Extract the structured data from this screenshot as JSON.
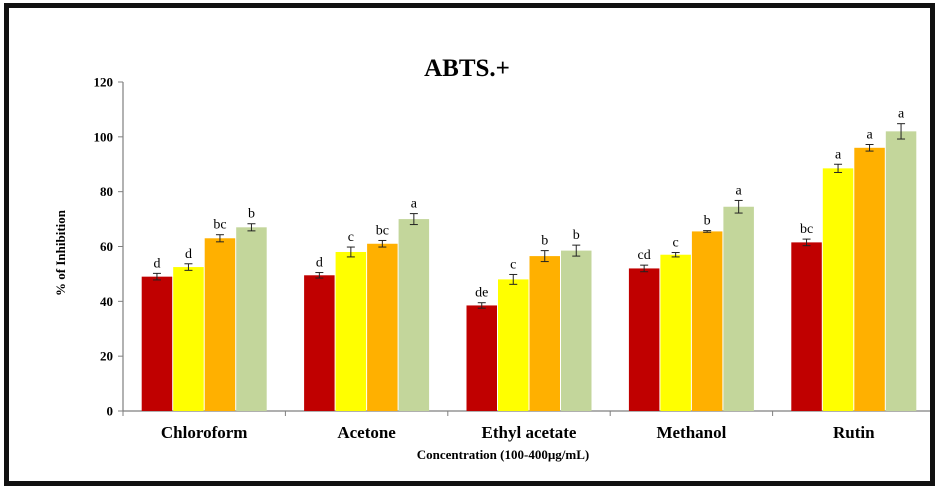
{
  "chart_data": {
    "type": "bar",
    "title": "ABTS.+",
    "xlabel": "Concentration (100-400µg/mL)",
    "ylabel": "% of Inhibition",
    "ylim": [
      0,
      120
    ],
    "yticks": [
      "0",
      "20",
      "40",
      "60",
      "80",
      "100",
      "120"
    ],
    "categories": [
      "Chloroform",
      "Acetone",
      "Ethyl acetate",
      "Methanol",
      "Rutin"
    ],
    "grid": false,
    "legend": "none",
    "series": [
      {
        "color": "#c00000",
        "values": [
          49,
          49.5,
          38.5,
          52,
          61.5
        ],
        "errors": [
          1.2,
          1.0,
          1.0,
          1.2,
          1.2
        ],
        "labels": [
          "d",
          "d",
          "de",
          "cd",
          "bc"
        ]
      },
      {
        "color": "#ffff00",
        "values": [
          52.5,
          58,
          48,
          57,
          88.5
        ],
        "errors": [
          1.2,
          1.8,
          1.8,
          0.8,
          1.5
        ],
        "labels": [
          "d",
          "c",
          "c",
          "c",
          "a"
        ]
      },
      {
        "color": "#ffb000",
        "values": [
          63,
          61,
          56.5,
          65.5,
          96
        ],
        "errors": [
          1.3,
          1.2,
          2.0,
          0.3,
          1.2
        ],
        "labels": [
          "bc",
          "bc",
          "b",
          "b",
          "a"
        ]
      },
      {
        "color": "#c3d69b",
        "values": [
          67,
          70,
          58.5,
          74.5,
          102
        ],
        "errors": [
          1.3,
          2.0,
          2.0,
          2.3,
          2.8
        ],
        "labels": [
          "b",
          "a",
          "b",
          "a",
          "a"
        ]
      }
    ]
  }
}
